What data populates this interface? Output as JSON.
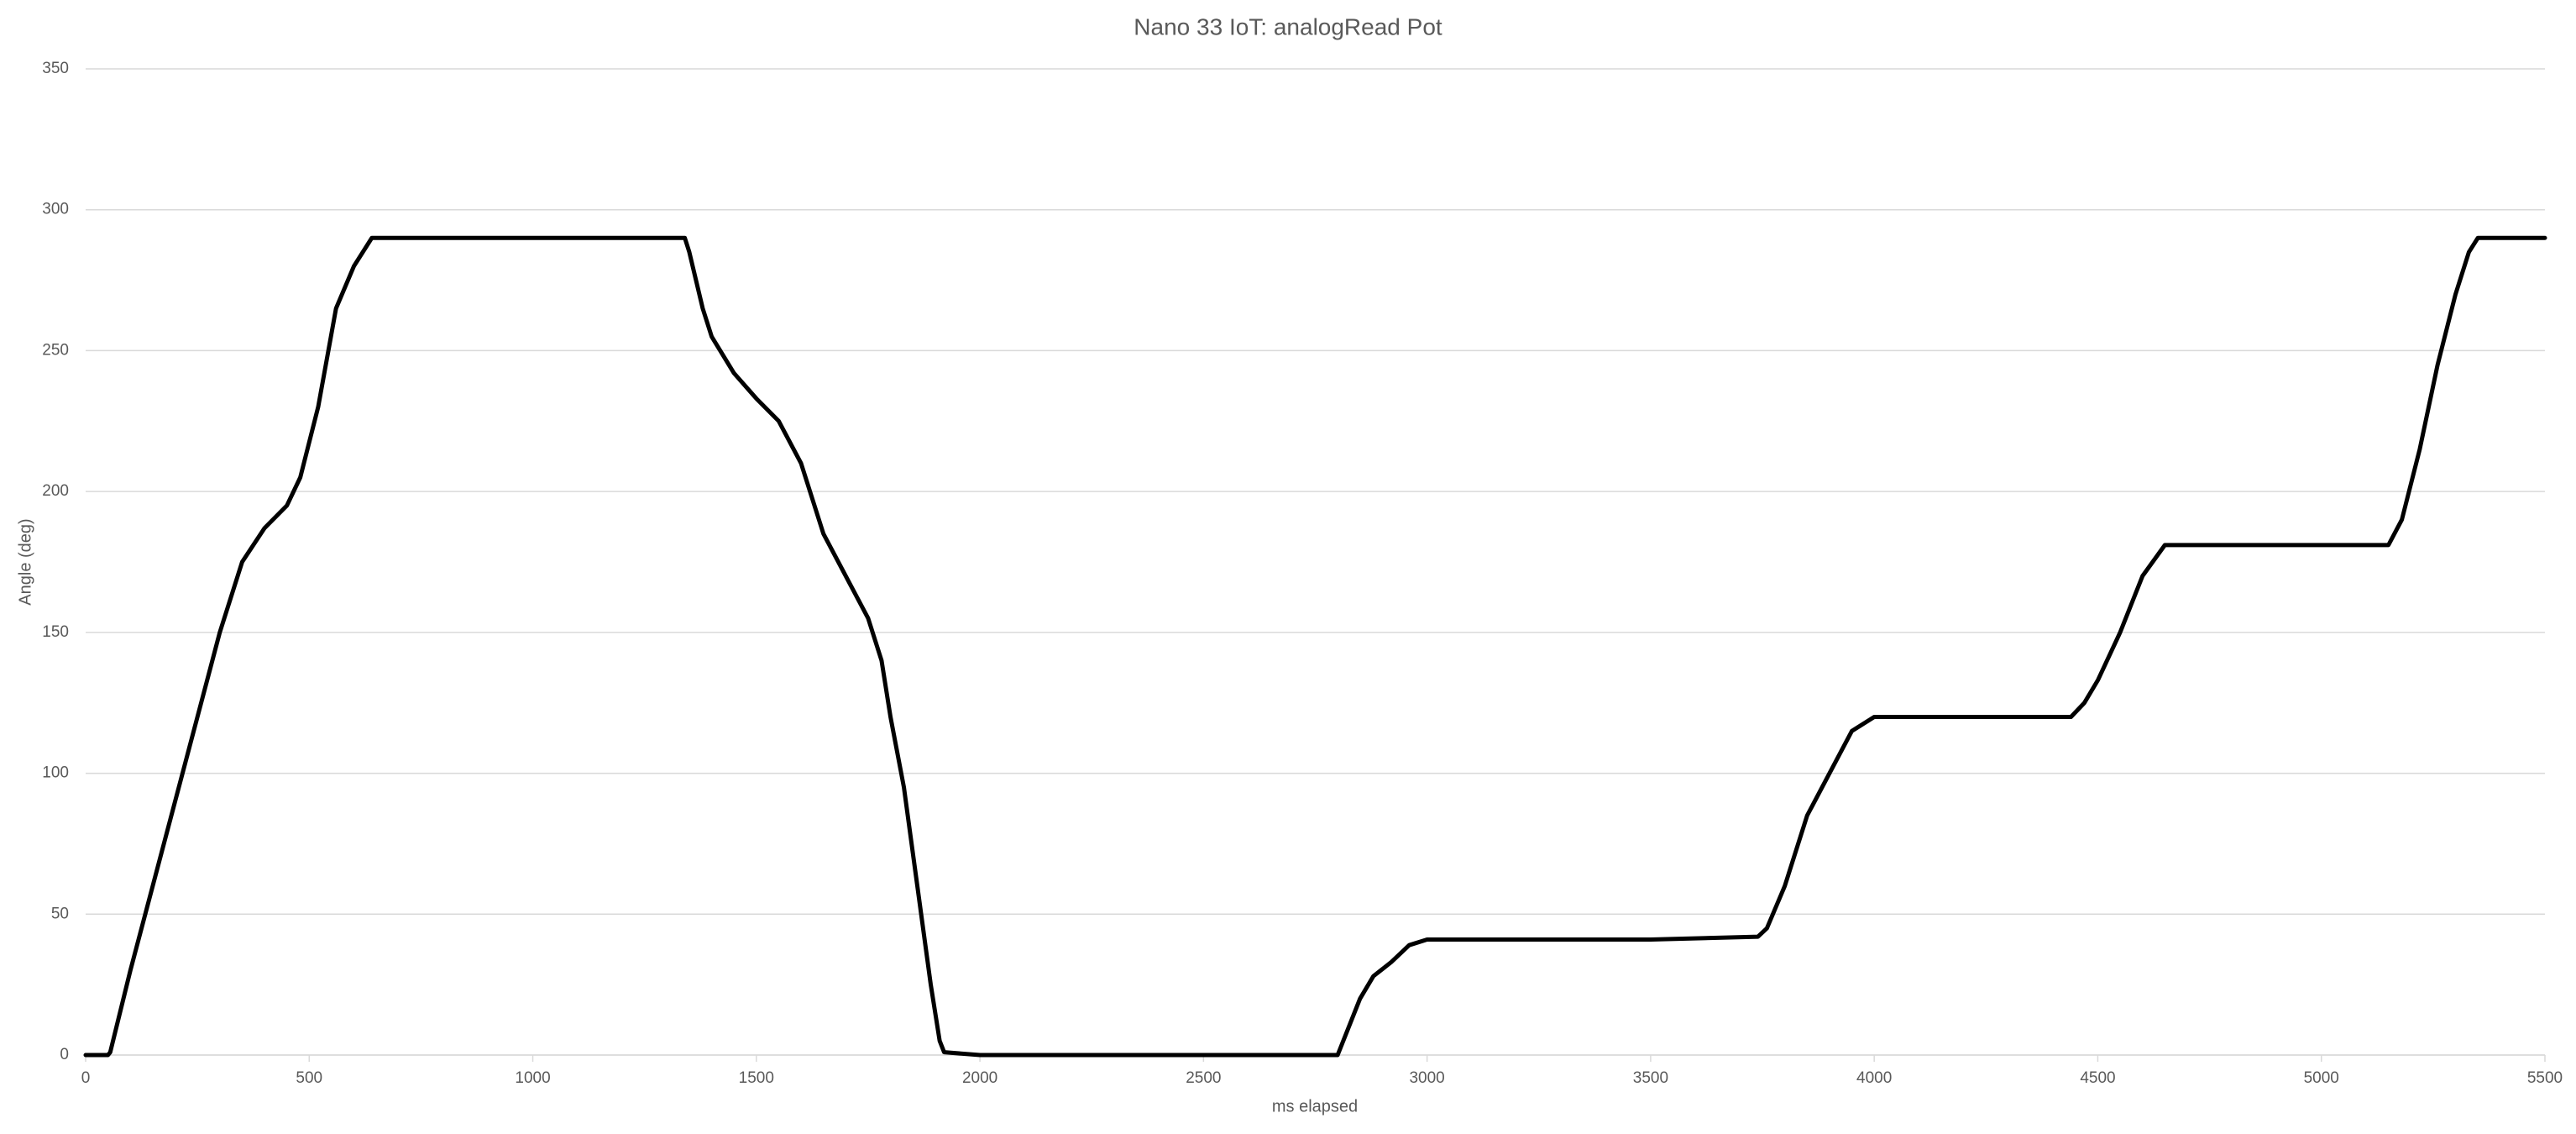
{
  "chart_data": {
    "type": "line",
    "title": "Nano 33 IoT: analogRead Pot",
    "x_label": "ms elapsed",
    "y_label": "Angle (deg)",
    "x": [
      0,
      50,
      55,
      100,
      150,
      200,
      250,
      300,
      350,
      400,
      450,
      480,
      520,
      560,
      600,
      640,
      700,
      1000,
      1340,
      1350,
      1380,
      1400,
      1450,
      1500,
      1550,
      1600,
      1650,
      1700,
      1750,
      1780,
      1800,
      1830,
      1860,
      1890,
      1910,
      1920,
      2000,
      2500,
      2800,
      2820,
      2850,
      2880,
      2920,
      2960,
      3000,
      3500,
      3740,
      3760,
      3800,
      3850,
      3900,
      3950,
      4000,
      4440,
      4470,
      4500,
      4550,
      4600,
      4650,
      5000,
      5150,
      5180,
      5220,
      5260,
      5300,
      5330,
      5350,
      5500
    ],
    "series": [
      {
        "name": "Angle",
        "color": "#000000",
        "values": [
          0,
          0,
          1,
          30,
          60,
          90,
          120,
          150,
          175,
          187,
          195,
          205,
          230,
          265,
          280,
          290,
          290,
          290,
          290,
          285,
          265,
          255,
          242,
          233,
          225,
          210,
          185,
          170,
          155,
          140,
          120,
          95,
          60,
          25,
          5,
          1,
          0,
          0,
          0,
          8,
          20,
          28,
          33,
          39,
          41,
          41,
          42,
          45,
          60,
          85,
          100,
          115,
          120,
          120,
          125,
          133,
          150,
          170,
          181,
          181,
          181,
          190,
          215,
          245,
          270,
          285,
          290,
          290
        ]
      }
    ],
    "xlim": [
      0,
      5500
    ],
    "xticks": [
      0,
      500,
      1000,
      1500,
      2000,
      2500,
      3000,
      3500,
      4000,
      4500,
      5000,
      5500
    ],
    "ylim": [
      0,
      350
    ],
    "yticks": [
      0,
      50,
      100,
      150,
      200,
      250,
      300,
      350
    ],
    "grid": true
  }
}
